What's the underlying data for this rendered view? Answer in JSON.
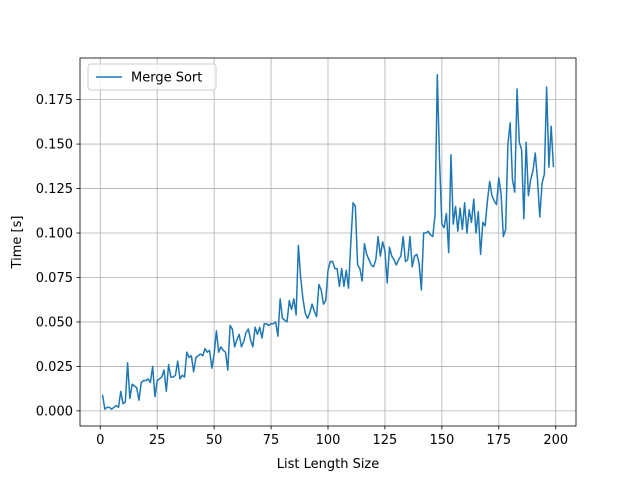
{
  "chart_data": {
    "type": "line",
    "xlabel": "List Length Size",
    "ylabel": "Time [s]",
    "x": [
      1,
      2,
      3,
      4,
      5,
      6,
      7,
      8,
      9,
      10,
      11,
      12,
      13,
      14,
      15,
      16,
      17,
      18,
      19,
      20,
      21,
      22,
      23,
      24,
      25,
      26,
      27,
      28,
      29,
      30,
      31,
      32,
      33,
      34,
      35,
      36,
      37,
      38,
      39,
      40,
      41,
      42,
      43,
      44,
      45,
      46,
      47,
      48,
      49,
      50,
      51,
      52,
      53,
      54,
      55,
      56,
      57,
      58,
      59,
      60,
      61,
      62,
      63,
      64,
      65,
      66,
      67,
      68,
      69,
      70,
      71,
      72,
      73,
      74,
      75,
      76,
      77,
      78,
      79,
      80,
      81,
      82,
      83,
      84,
      85,
      86,
      87,
      88,
      89,
      90,
      91,
      92,
      93,
      94,
      95,
      96,
      97,
      98,
      99,
      100,
      101,
      102,
      103,
      104,
      105,
      106,
      107,
      108,
      109,
      110,
      111,
      112,
      113,
      114,
      115,
      116,
      117,
      118,
      119,
      120,
      121,
      122,
      123,
      124,
      125,
      126,
      127,
      128,
      129,
      130,
      131,
      132,
      133,
      134,
      135,
      136,
      137,
      138,
      139,
      140,
      141,
      142,
      143,
      144,
      145,
      146,
      147,
      148,
      149,
      150,
      151,
      152,
      153,
      154,
      155,
      156,
      157,
      158,
      159,
      160,
      161,
      162,
      163,
      164,
      165,
      166,
      167,
      168,
      169,
      170,
      171,
      172,
      173,
      174,
      175,
      176,
      177,
      178,
      179,
      180,
      181,
      182,
      183,
      184,
      185,
      186,
      187,
      188,
      189,
      190,
      191,
      192,
      193,
      194,
      195,
      196,
      197,
      198,
      199
    ],
    "series": [
      {
        "name": "Merge Sort",
        "color": "#1f77b4",
        "values": [
          0.009,
          0.001,
          0.002,
          0.002,
          0.001,
          0.002,
          0.003,
          0.002,
          0.011,
          0.004,
          0.005,
          0.027,
          0.007,
          0.015,
          0.014,
          0.013,
          0.006,
          0.016,
          0.017,
          0.017,
          0.018,
          0.016,
          0.025,
          0.008,
          0.017,
          0.018,
          0.019,
          0.023,
          0.011,
          0.026,
          0.019,
          0.019,
          0.02,
          0.028,
          0.018,
          0.02,
          0.019,
          0.033,
          0.03,
          0.031,
          0.022,
          0.03,
          0.031,
          0.032,
          0.031,
          0.035,
          0.033,
          0.034,
          0.024,
          0.032,
          0.045,
          0.033,
          0.036,
          0.034,
          0.033,
          0.023,
          0.048,
          0.046,
          0.036,
          0.04,
          0.043,
          0.036,
          0.039,
          0.044,
          0.046,
          0.04,
          0.036,
          0.047,
          0.043,
          0.047,
          0.041,
          0.049,
          0.049,
          0.048,
          0.049,
          0.049,
          0.05,
          0.042,
          0.063,
          0.052,
          0.051,
          0.05,
          0.062,
          0.057,
          0.063,
          0.054,
          0.093,
          0.075,
          0.063,
          0.055,
          0.052,
          0.055,
          0.06,
          0.056,
          0.053,
          0.071,
          0.068,
          0.06,
          0.062,
          0.079,
          0.084,
          0.084,
          0.08,
          0.08,
          0.07,
          0.08,
          0.07,
          0.079,
          0.069,
          0.094,
          0.117,
          0.115,
          0.082,
          0.08,
          0.073,
          0.094,
          0.088,
          0.085,
          0.082,
          0.081,
          0.085,
          0.098,
          0.087,
          0.095,
          0.09,
          0.072,
          0.092,
          0.087,
          0.085,
          0.082,
          0.085,
          0.087,
          0.098,
          0.084,
          0.085,
          0.098,
          0.081,
          0.087,
          0.088,
          0.083,
          0.068,
          0.1,
          0.1,
          0.101,
          0.099,
          0.098,
          0.11,
          0.189,
          0.14,
          0.105,
          0.103,
          0.111,
          0.089,
          0.144,
          0.105,
          0.115,
          0.101,
          0.114,
          0.102,
          0.117,
          0.1,
          0.113,
          0.106,
          0.119,
          0.1,
          0.112,
          0.088,
          0.106,
          0.104,
          0.118,
          0.129,
          0.121,
          0.118,
          0.116,
          0.131,
          0.122,
          0.098,
          0.102,
          0.15,
          0.162,
          0.13,
          0.123,
          0.181,
          0.151,
          0.147,
          0.108,
          0.151,
          0.121,
          0.13,
          0.135,
          0.145,
          0.13,
          0.109,
          0.128,
          0.133,
          0.182,
          0.137,
          0.16,
          0.137
        ]
      }
    ],
    "xlim": [
      -8.9,
      208.9
    ],
    "xticks": [
      0,
      25,
      50,
      75,
      100,
      125,
      150,
      175,
      200
    ],
    "ylim": [
      -0.0085,
      0.1984
    ],
    "yticks": [
      {
        "value": 0,
        "label": "0.000"
      },
      {
        "value": 0.025,
        "label": "0.025"
      },
      {
        "value": 0.05,
        "label": "0.050"
      },
      {
        "value": 0.075,
        "label": "0.075"
      },
      {
        "value": 0.1,
        "label": "0.100"
      },
      {
        "value": 0.125,
        "label": "0.125"
      },
      {
        "value": 0.15,
        "label": "0.150"
      },
      {
        "value": 0.175,
        "label": "0.175"
      }
    ],
    "grid": true,
    "legend": "upper left"
  }
}
